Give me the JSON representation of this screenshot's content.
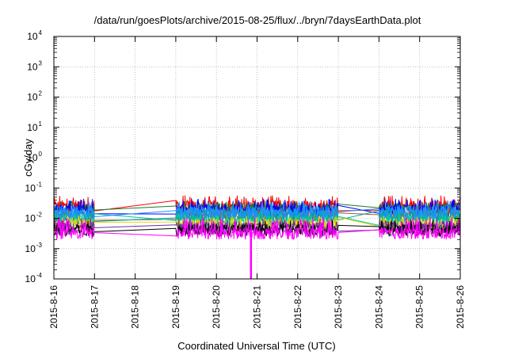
{
  "chart_data": {
    "type": "line",
    "title": "/data/run/goesPlots/archive/2015-08-25/flux/../bryn/7daysEarthData.plot",
    "xlabel": "Coordinated Universal Time (UTC)",
    "ylabel": "cGy/day",
    "yscale": "log",
    "ylim": [
      0.0001,
      10000
    ],
    "xlim": [
      "2015-8-16",
      "2015-8-26"
    ],
    "grid": true,
    "x_ticks": [
      "2015-8-16",
      "2015-8-17",
      "2015-8-18",
      "2015-8-19",
      "2015-8-20",
      "2015-8-21",
      "2015-8-22",
      "2015-8-23",
      "2015-8-24",
      "2015-8-25",
      "2015-8-26"
    ],
    "y_ticks": [
      {
        "value": 0.0001,
        "base": "10",
        "exp": "-4"
      },
      {
        "value": 0.001,
        "base": "10",
        "exp": "-3"
      },
      {
        "value": 0.01,
        "base": "10",
        "exp": "-2"
      },
      {
        "value": 0.1,
        "base": "10",
        "exp": "-1"
      },
      {
        "value": 1,
        "base": "10",
        "exp": "0"
      },
      {
        "value": 10,
        "base": "10",
        "exp": "1"
      },
      {
        "value": 100,
        "base": "10",
        "exp": "2"
      },
      {
        "value": 1000,
        "base": "10",
        "exp": "3"
      },
      {
        "value": 10000,
        "base": "10",
        "exp": "4"
      }
    ],
    "data_segments": [
      {
        "start": "2015-8-16",
        "end": "2015-8-17"
      },
      {
        "start": "2015-8-19",
        "end": "2015-8-23"
      },
      {
        "start": "2015-8-24",
        "end": "2015-8-26"
      }
    ],
    "dropout": {
      "x": "2015-8-20.85",
      "min": 0.0001
    },
    "series": [
      {
        "color": "#ff0000",
        "base": 0.025,
        "peak": 0.045
      },
      {
        "color": "#1b7a2a",
        "base": 0.02,
        "peak": 0.03
      },
      {
        "color": "#0000ff",
        "base": 0.018,
        "peak": 0.035
      },
      {
        "color": "#a05a2c",
        "base": 0.012,
        "peak": 0.02
      },
      {
        "color": "#00a0a0",
        "base": 0.012,
        "peak": 0.02
      },
      {
        "color": "#00c8a0",
        "base": 0.009,
        "peak": 0.015
      },
      {
        "color": "#e8d000",
        "base": 0.006,
        "peak": 0.01
      },
      {
        "color": "#7030a0",
        "base": 0.005,
        "peak": 0.008
      },
      {
        "color": "#000000",
        "base": 0.004,
        "peak": 0.007
      },
      {
        "color": "#1e90ff",
        "base": 0.016,
        "peak": 0.03
      },
      {
        "color": "#ff00ff",
        "base": 0.0032,
        "peak": 0.009
      }
    ]
  }
}
